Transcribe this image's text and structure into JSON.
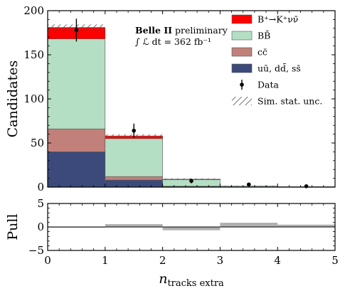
{
  "chart_data": [
    {
      "type": "bar",
      "stacked": true,
      "bin_edges": [
        0,
        1,
        2,
        3,
        4,
        5
      ],
      "xlim": [
        0,
        5
      ],
      "ylim": [
        0,
        200
      ],
      "yticks": [
        0,
        50,
        100,
        150,
        200
      ],
      "ylabel": "Candidates",
      "annotation": {
        "title_bold": "Belle II",
        "title_rest": " preliminary",
        "luminosity": "∫ ℒ dt = 362 fb⁻¹"
      },
      "series": [
        {
          "name": "uū, dd̄, ss̄",
          "color": "#3b4a7a",
          "values": [
            40,
            8,
            0.5,
            0.1,
            0.05
          ]
        },
        {
          "name": "cc̄",
          "color": "#c1807a",
          "values": [
            26,
            4,
            0.5,
            0.1,
            0.05
          ]
        },
        {
          "name": "BB̄",
          "color": "#b4dfc4",
          "values": [
            102,
            43,
            7.5,
            0.8,
            0.3
          ]
        },
        {
          "name": "B⁺→K⁺νν̄",
          "color": "#ff0000",
          "values": [
            13,
            3,
            0.5,
            0.1,
            0.05
          ]
        }
      ],
      "sim_stat_unc": {
        "name": "Sim. stat. unc.",
        "half_width": [
          3.5,
          2,
          1,
          0.5,
          0.3
        ]
      },
      "data": {
        "name": "Data",
        "x": [
          0.5,
          1.5,
          2.5,
          3.5,
          4.5
        ],
        "y": [
          178,
          64,
          7,
          3,
          1
        ],
        "yerr": [
          13,
          8,
          2.6,
          1.7,
          1
        ]
      }
    },
    {
      "type": "bar",
      "bin_edges": [
        0,
        1,
        2,
        3,
        4,
        5
      ],
      "values": [
        -0.1,
        0.6,
        -0.7,
        0.9,
        0.5
      ],
      "color": "#b0b0b0",
      "xlim": [
        0,
        5
      ],
      "ylim": [
        -5,
        5
      ],
      "xticks": [
        0,
        1,
        2,
        3,
        4,
        5
      ],
      "yticks": [
        -5,
        0,
        5
      ],
      "ylabel": "Pull",
      "xlabel": "n_tracks extra"
    }
  ]
}
